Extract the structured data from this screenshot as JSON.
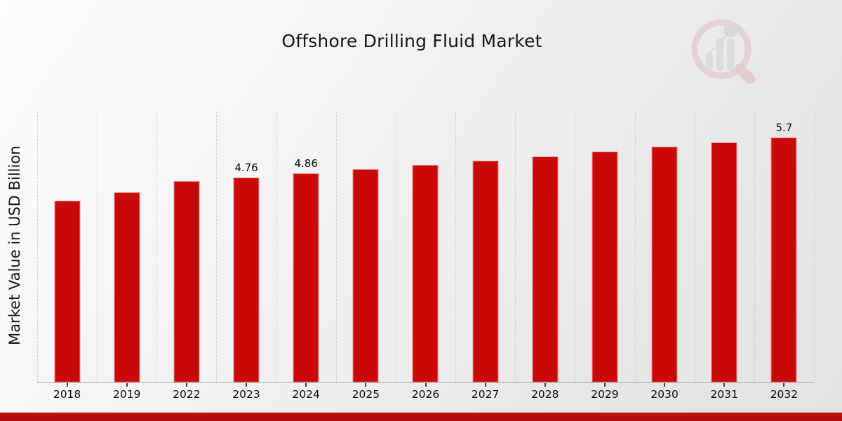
{
  "page": {
    "title": "Offshore Drilling Fluid Market",
    "y_axis_label": "Market Value in USD Billion",
    "watermark_icon": "market-research-magnifier-logo"
  },
  "chart_data": {
    "type": "bar",
    "title": "Offshore Drilling Fluid Market",
    "xlabel": "",
    "ylabel": "Market Value in USD Billion",
    "categories": [
      "2018",
      "2019",
      "2022",
      "2023",
      "2024",
      "2025",
      "2026",
      "2027",
      "2028",
      "2029",
      "2030",
      "2031",
      "2032"
    ],
    "values": [
      4.23,
      4.42,
      4.68,
      4.76,
      4.86,
      4.96,
      5.06,
      5.16,
      5.26,
      5.37,
      5.48,
      5.59,
      5.7
    ],
    "bar_labels": [
      "",
      "",
      "",
      "4.76",
      "4.86",
      "",
      "",
      "",
      "",
      "",
      "",
      "",
      "5.7"
    ],
    "ylim": [
      0,
      6.3
    ],
    "grid": "vertical-dotted-category-boundaries",
    "legend_position": "none",
    "bar_color": "#c90808",
    "accent_band_color": "#b70d0d",
    "units": "USD Billion"
  }
}
